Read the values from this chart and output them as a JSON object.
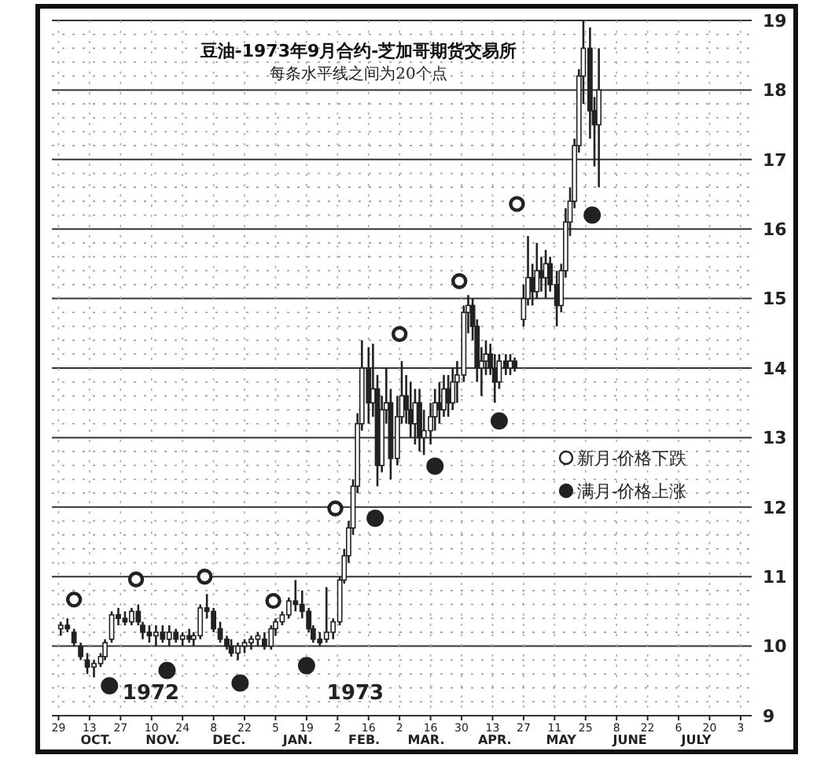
{
  "chart_data": {
    "type": "candlestick",
    "title": "豆油-1973年9月合约-芝加哥期货交易所",
    "subtitle": "每条水平线之间为20个点",
    "x": [
      "1972-09-30",
      "1972-10-03",
      "1972-10-06",
      "1972-10-09",
      "1972-10-12",
      "1972-10-15",
      "1972-10-18",
      "1972-10-20",
      "1972-10-23",
      "1972-10-26",
      "1972-10-29",
      "1972-11-01",
      "1972-11-04",
      "1972-11-06",
      "1972-11-09",
      "1972-11-12",
      "1972-11-15",
      "1972-11-18",
      "1972-11-21",
      "1972-11-24",
      "1972-11-27",
      "1972-11-29",
      "1972-12-02",
      "1972-12-05",
      "1972-12-08",
      "1972-12-11",
      "1972-12-14",
      "1972-12-16",
      "1972-12-19",
      "1972-12-22",
      "1972-12-25",
      "1972-12-28",
      "1972-12-31",
      "1973-01-03",
      "1973-01-05",
      "1973-01-08",
      "1973-01-11",
      "1973-01-14",
      "1973-01-17",
      "1973-01-20",
      "1973-01-22",
      "1973-01-25",
      "1973-01-28",
      "1973-01-31",
      "1973-02-03",
      "1973-02-05",
      "1973-02-07",
      "1973-02-09",
      "1973-02-11",
      "1973-02-13",
      "1973-02-16",
      "1973-02-18",
      "1973-02-20",
      "1973-02-22",
      "1973-02-24",
      "1973-02-26",
      "1973-03-01",
      "1973-03-03",
      "1973-03-05",
      "1973-03-07",
      "1973-03-09",
      "1973-03-11",
      "1973-03-13",
      "1973-03-16",
      "1973-03-18",
      "1973-03-20",
      "1973-03-22",
      "1973-03-24",
      "1973-03-26",
      "1973-03-28",
      "1973-03-31",
      "1973-04-02",
      "1973-04-04",
      "1973-04-06",
      "1973-04-08",
      "1973-04-10",
      "1973-04-12",
      "1973-04-14",
      "1973-04-16",
      "1973-04-19",
      "1973-04-21",
      "1973-04-23",
      "1973-04-27",
      "1973-04-29",
      "1973-05-01",
      "1973-05-03",
      "1973-05-05",
      "1973-05-07",
      "1973-05-09",
      "1973-05-12",
      "1973-05-14",
      "1973-05-16",
      "1973-05-18",
      "1973-05-20",
      "1973-05-22",
      "1973-05-24",
      "1973-05-27",
      "1973-05-29",
      "1973-05-31"
    ],
    "ohlc": [
      [
        10.25,
        10.35,
        10.15,
        10.3
      ],
      [
        10.3,
        10.4,
        10.2,
        10.25
      ],
      [
        10.2,
        10.25,
        10.0,
        10.05
      ],
      [
        10.0,
        10.05,
        9.8,
        9.85
      ],
      [
        9.8,
        9.9,
        9.6,
        9.7
      ],
      [
        9.7,
        9.8,
        9.55,
        9.75
      ],
      [
        9.75,
        9.9,
        9.7,
        9.85
      ],
      [
        9.85,
        10.1,
        9.8,
        10.05
      ],
      [
        10.1,
        10.5,
        10.05,
        10.45
      ],
      [
        10.45,
        10.55,
        10.3,
        10.4
      ],
      [
        10.4,
        10.5,
        10.3,
        10.35
      ],
      [
        10.35,
        10.55,
        10.3,
        10.5
      ],
      [
        10.5,
        10.6,
        10.3,
        10.35
      ],
      [
        10.3,
        10.35,
        10.1,
        10.2
      ],
      [
        10.2,
        10.3,
        10.05,
        10.15
      ],
      [
        10.15,
        10.3,
        10.0,
        10.2
      ],
      [
        10.2,
        10.3,
        10.05,
        10.1
      ],
      [
        10.1,
        10.3,
        10.0,
        10.2
      ],
      [
        10.2,
        10.25,
        10.05,
        10.1
      ],
      [
        10.1,
        10.2,
        10.0,
        10.15
      ],
      [
        10.15,
        10.25,
        10.05,
        10.1
      ],
      [
        10.1,
        10.2,
        10.0,
        10.15
      ],
      [
        10.15,
        10.6,
        10.1,
        10.55
      ],
      [
        10.55,
        10.75,
        10.4,
        10.5
      ],
      [
        10.5,
        10.55,
        10.2,
        10.25
      ],
      [
        10.25,
        10.35,
        10.05,
        10.1
      ],
      [
        10.1,
        10.15,
        9.95,
        10.0
      ],
      [
        10.0,
        10.1,
        9.85,
        9.9
      ],
      [
        9.9,
        10.05,
        9.8,
        10.0
      ],
      [
        10.0,
        10.1,
        9.9,
        10.05
      ],
      [
        10.05,
        10.15,
        9.95,
        10.1
      ],
      [
        10.1,
        10.2,
        10.0,
        10.15
      ],
      [
        10.1,
        10.2,
        9.95,
        10.0
      ],
      [
        10.0,
        10.3,
        9.95,
        10.25
      ],
      [
        10.25,
        10.4,
        10.15,
        10.35
      ],
      [
        10.35,
        10.5,
        10.3,
        10.45
      ],
      [
        10.45,
        10.7,
        10.4,
        10.65
      ],
      [
        10.65,
        10.95,
        10.5,
        10.6
      ],
      [
        10.6,
        10.8,
        10.4,
        10.5
      ],
      [
        10.5,
        10.55,
        10.2,
        10.25
      ],
      [
        10.25,
        10.3,
        10.05,
        10.1
      ],
      [
        10.1,
        10.2,
        10.0,
        10.05
      ],
      [
        10.1,
        10.85,
        10.05,
        10.2
      ],
      [
        10.2,
        10.4,
        10.1,
        10.35
      ],
      [
        10.35,
        11.0,
        10.3,
        10.95
      ],
      [
        10.95,
        11.4,
        10.9,
        11.3
      ],
      [
        11.3,
        11.8,
        11.2,
        11.7
      ],
      [
        11.7,
        12.4,
        11.6,
        12.3
      ],
      [
        12.3,
        13.35,
        12.2,
        13.2
      ],
      [
        13.2,
        14.4,
        13.1,
        14.0
      ],
      [
        14.0,
        14.3,
        13.2,
        13.5
      ],
      [
        13.5,
        14.35,
        13.3,
        13.7
      ],
      [
        13.7,
        13.9,
        12.3,
        12.6
      ],
      [
        12.6,
        13.6,
        12.5,
        13.4
      ],
      [
        13.4,
        14.0,
        13.2,
        13.5
      ],
      [
        13.5,
        13.7,
        12.4,
        12.7
      ],
      [
        12.7,
        13.6,
        12.6,
        13.3
      ],
      [
        13.3,
        14.1,
        13.2,
        13.6
      ],
      [
        13.6,
        13.9,
        13.2,
        13.4
      ],
      [
        13.4,
        13.8,
        13.0,
        13.2
      ],
      [
        13.2,
        13.7,
        12.9,
        13.5
      ],
      [
        13.5,
        13.7,
        12.8,
        13.0
      ],
      [
        13.0,
        13.4,
        12.75,
        13.1
      ],
      [
        13.1,
        13.5,
        12.9,
        13.3
      ],
      [
        13.3,
        13.7,
        13.1,
        13.5
      ],
      [
        13.5,
        13.8,
        13.2,
        13.4
      ],
      [
        13.4,
        13.9,
        13.3,
        13.7
      ],
      [
        13.7,
        13.9,
        13.3,
        13.5
      ],
      [
        13.5,
        14.0,
        13.4,
        13.8
      ],
      [
        13.8,
        14.1,
        13.5,
        13.9
      ],
      [
        13.9,
        14.9,
        13.8,
        14.8
      ],
      [
        14.8,
        15.05,
        14.5,
        14.9
      ],
      [
        14.9,
        15.0,
        14.4,
        14.6
      ],
      [
        14.6,
        14.7,
        13.8,
        14.0
      ],
      [
        14.0,
        14.3,
        13.6,
        14.1
      ],
      [
        14.1,
        14.4,
        13.9,
        14.2
      ],
      [
        14.2,
        14.35,
        13.9,
        14.0
      ],
      [
        14.0,
        14.2,
        13.5,
        13.8
      ],
      [
        13.8,
        14.2,
        13.7,
        14.1
      ],
      [
        14.1,
        14.2,
        13.9,
        14.0
      ],
      [
        14.0,
        14.2,
        13.9,
        14.1
      ],
      [
        14.1,
        14.15,
        13.95,
        14.0
      ],
      [
        14.7,
        15.2,
        14.6,
        15.0
      ],
      [
        15.0,
        15.9,
        14.9,
        15.3
      ],
      [
        15.3,
        15.5,
        14.9,
        15.1
      ],
      [
        15.1,
        15.8,
        15.0,
        15.4
      ],
      [
        15.4,
        15.6,
        15.1,
        15.3
      ],
      [
        15.3,
        15.7,
        15.0,
        15.5
      ],
      [
        15.5,
        15.6,
        15.1,
        15.2
      ],
      [
        15.2,
        15.4,
        14.6,
        14.9
      ],
      [
        14.9,
        15.5,
        14.8,
        15.4
      ],
      [
        15.4,
        16.3,
        15.3,
        16.1
      ],
      [
        16.1,
        16.6,
        15.9,
        16.4
      ],
      [
        16.4,
        17.3,
        16.3,
        17.2
      ],
      [
        17.2,
        18.3,
        17.1,
        18.2
      ],
      [
        18.2,
        19.0,
        17.8,
        18.6
      ],
      [
        18.6,
        18.9,
        17.3,
        17.7
      ],
      [
        17.7,
        17.9,
        16.9,
        17.5
      ],
      [
        17.5,
        18.6,
        16.6,
        18.0
      ]
    ],
    "color": "#222222",
    "series": [
      {
        "name": "新月-价格下跌",
        "type": "scatter",
        "marker": "circle",
        "color": "#ffffff",
        "x": [
          "1972-10-06",
          "1972-11-03",
          "1972-12-04",
          "1973-01-04",
          "1973-02-01",
          "1973-03-02",
          "1973-03-29",
          "1973-04-24"
        ],
        "values": [
          10.67,
          10.96,
          11.0,
          10.65,
          11.98,
          14.49,
          15.25,
          16.36
        ]
      },
      {
        "name": "满月-价格上涨",
        "type": "scatter",
        "marker": "circle",
        "color": "#222222",
        "x": [
          "1972-10-22",
          "1972-11-17",
          "1972-12-20",
          "1973-01-19",
          "1973-02-19",
          "1973-03-18",
          "1973-04-16",
          "1973-05-28"
        ],
        "values": [
          9.43,
          9.65,
          9.47,
          9.72,
          11.84,
          12.59,
          13.24,
          16.2
        ]
      }
    ],
    "xlim": [
      "1972-09-26",
      "1973-08-08"
    ],
    "xticks": [
      {
        "value": "1972-09-29",
        "label": "29"
      },
      {
        "value": "1972-10-13",
        "label": "13"
      },
      {
        "value": "1972-10-27",
        "label": "27"
      },
      {
        "value": "1972-11-10",
        "label": "10"
      },
      {
        "value": "1972-11-24",
        "label": "24"
      },
      {
        "value": "1972-12-08",
        "label": "8"
      },
      {
        "value": "1972-12-22",
        "label": "22"
      },
      {
        "value": "1973-01-05",
        "label": "5"
      },
      {
        "value": "1973-01-19",
        "label": "19"
      },
      {
        "value": "1973-02-02",
        "label": "2"
      },
      {
        "value": "1973-02-16",
        "label": "16"
      },
      {
        "value": "1973-03-02",
        "label": "2"
      },
      {
        "value": "1973-03-16",
        "label": "16"
      },
      {
        "value": "1973-03-30",
        "label": "30"
      },
      {
        "value": "1973-04-13",
        "label": "13"
      },
      {
        "value": "1973-04-27",
        "label": "27"
      },
      {
        "value": "1973-05-11",
        "label": "11"
      },
      {
        "value": "1973-05-25",
        "label": "25"
      },
      {
        "value": "1973-06-08",
        "label": "8"
      },
      {
        "value": "1973-06-22",
        "label": "22"
      },
      {
        "value": "1973-07-06",
        "label": "6"
      },
      {
        "value": "1973-07-20",
        "label": "20"
      },
      {
        "value": "1973-08-03",
        "label": "3"
      }
    ],
    "x2lim": [
      "1972-09-26",
      "1973-08-08"
    ],
    "x2ticks": [
      {
        "value": "1972-10-16",
        "label": "OCT."
      },
      {
        "value": "1972-11-15",
        "label": "NOV."
      },
      {
        "value": "1972-12-15",
        "label": "DEC."
      },
      {
        "value": "1973-01-15",
        "label": "JAN."
      },
      {
        "value": "1973-02-14",
        "label": "FEB."
      },
      {
        "value": "1973-03-14",
        "label": "MAR."
      },
      {
        "value": "1973-04-14",
        "label": "APR."
      },
      {
        "value": "1973-05-14",
        "label": "MAY"
      },
      {
        "value": "1973-06-14",
        "label": "JUNE"
      },
      {
        "value": "1973-07-14",
        "label": "JULY"
      }
    ],
    "ylim": [
      9,
      19
    ],
    "yticks": [
      9,
      10,
      11,
      12,
      13,
      14,
      15,
      16,
      17,
      18,
      19
    ],
    "annotations": [
      "1972",
      "1973"
    ],
    "grid": true,
    "legend": "right"
  }
}
